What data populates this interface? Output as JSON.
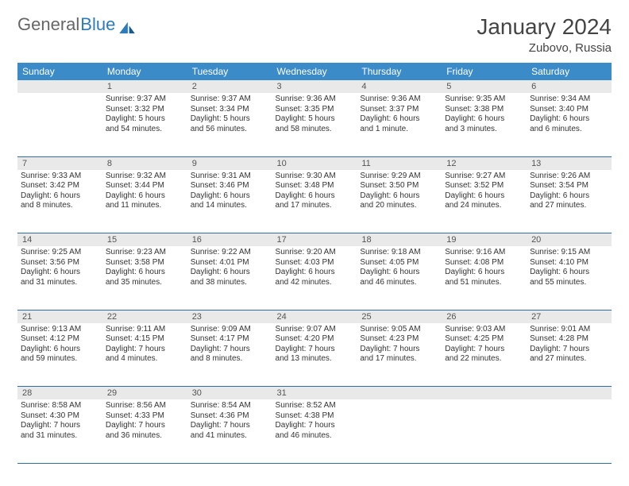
{
  "brand": {
    "general": "General",
    "blue": "Blue"
  },
  "title": "January 2024",
  "location": "Zubovo, Russia",
  "colors": {
    "header_bg": "#3b8bc9",
    "header_text": "#ffffff",
    "daynum_bg": "#e9e9e9",
    "daynum_text": "#555555",
    "row_border": "#2e6fa8",
    "body_text": "#333333",
    "title_text": "#444444",
    "logo_gray": "#666666",
    "logo_blue": "#2c7bbd"
  },
  "weekdays": [
    "Sunday",
    "Monday",
    "Tuesday",
    "Wednesday",
    "Thursday",
    "Friday",
    "Saturday"
  ],
  "weeks": [
    {
      "nums": [
        "",
        "1",
        "2",
        "3",
        "4",
        "5",
        "6"
      ],
      "cells": [
        {
          "lines": []
        },
        {
          "lines": [
            "Sunrise: 9:37 AM",
            "Sunset: 3:32 PM",
            "Daylight: 5 hours",
            "and 54 minutes."
          ]
        },
        {
          "lines": [
            "Sunrise: 9:37 AM",
            "Sunset: 3:34 PM",
            "Daylight: 5 hours",
            "and 56 minutes."
          ]
        },
        {
          "lines": [
            "Sunrise: 9:36 AM",
            "Sunset: 3:35 PM",
            "Daylight: 5 hours",
            "and 58 minutes."
          ]
        },
        {
          "lines": [
            "Sunrise: 9:36 AM",
            "Sunset: 3:37 PM",
            "Daylight: 6 hours",
            "and 1 minute."
          ]
        },
        {
          "lines": [
            "Sunrise: 9:35 AM",
            "Sunset: 3:38 PM",
            "Daylight: 6 hours",
            "and 3 minutes."
          ]
        },
        {
          "lines": [
            "Sunrise: 9:34 AM",
            "Sunset: 3:40 PM",
            "Daylight: 6 hours",
            "and 6 minutes."
          ]
        }
      ]
    },
    {
      "nums": [
        "7",
        "8",
        "9",
        "10",
        "11",
        "12",
        "13"
      ],
      "cells": [
        {
          "lines": [
            "Sunrise: 9:33 AM",
            "Sunset: 3:42 PM",
            "Daylight: 6 hours",
            "and 8 minutes."
          ]
        },
        {
          "lines": [
            "Sunrise: 9:32 AM",
            "Sunset: 3:44 PM",
            "Daylight: 6 hours",
            "and 11 minutes."
          ]
        },
        {
          "lines": [
            "Sunrise: 9:31 AM",
            "Sunset: 3:46 PM",
            "Daylight: 6 hours",
            "and 14 minutes."
          ]
        },
        {
          "lines": [
            "Sunrise: 9:30 AM",
            "Sunset: 3:48 PM",
            "Daylight: 6 hours",
            "and 17 minutes."
          ]
        },
        {
          "lines": [
            "Sunrise: 9:29 AM",
            "Sunset: 3:50 PM",
            "Daylight: 6 hours",
            "and 20 minutes."
          ]
        },
        {
          "lines": [
            "Sunrise: 9:27 AM",
            "Sunset: 3:52 PM",
            "Daylight: 6 hours",
            "and 24 minutes."
          ]
        },
        {
          "lines": [
            "Sunrise: 9:26 AM",
            "Sunset: 3:54 PM",
            "Daylight: 6 hours",
            "and 27 minutes."
          ]
        }
      ]
    },
    {
      "nums": [
        "14",
        "15",
        "16",
        "17",
        "18",
        "19",
        "20"
      ],
      "cells": [
        {
          "lines": [
            "Sunrise: 9:25 AM",
            "Sunset: 3:56 PM",
            "Daylight: 6 hours",
            "and 31 minutes."
          ]
        },
        {
          "lines": [
            "Sunrise: 9:23 AM",
            "Sunset: 3:58 PM",
            "Daylight: 6 hours",
            "and 35 minutes."
          ]
        },
        {
          "lines": [
            "Sunrise: 9:22 AM",
            "Sunset: 4:01 PM",
            "Daylight: 6 hours",
            "and 38 minutes."
          ]
        },
        {
          "lines": [
            "Sunrise: 9:20 AM",
            "Sunset: 4:03 PM",
            "Daylight: 6 hours",
            "and 42 minutes."
          ]
        },
        {
          "lines": [
            "Sunrise: 9:18 AM",
            "Sunset: 4:05 PM",
            "Daylight: 6 hours",
            "and 46 minutes."
          ]
        },
        {
          "lines": [
            "Sunrise: 9:16 AM",
            "Sunset: 4:08 PM",
            "Daylight: 6 hours",
            "and 51 minutes."
          ]
        },
        {
          "lines": [
            "Sunrise: 9:15 AM",
            "Sunset: 4:10 PM",
            "Daylight: 6 hours",
            "and 55 minutes."
          ]
        }
      ]
    },
    {
      "nums": [
        "21",
        "22",
        "23",
        "24",
        "25",
        "26",
        "27"
      ],
      "cells": [
        {
          "lines": [
            "Sunrise: 9:13 AM",
            "Sunset: 4:12 PM",
            "Daylight: 6 hours",
            "and 59 minutes."
          ]
        },
        {
          "lines": [
            "Sunrise: 9:11 AM",
            "Sunset: 4:15 PM",
            "Daylight: 7 hours",
            "and 4 minutes."
          ]
        },
        {
          "lines": [
            "Sunrise: 9:09 AM",
            "Sunset: 4:17 PM",
            "Daylight: 7 hours",
            "and 8 minutes."
          ]
        },
        {
          "lines": [
            "Sunrise: 9:07 AM",
            "Sunset: 4:20 PM",
            "Daylight: 7 hours",
            "and 13 minutes."
          ]
        },
        {
          "lines": [
            "Sunrise: 9:05 AM",
            "Sunset: 4:23 PM",
            "Daylight: 7 hours",
            "and 17 minutes."
          ]
        },
        {
          "lines": [
            "Sunrise: 9:03 AM",
            "Sunset: 4:25 PM",
            "Daylight: 7 hours",
            "and 22 minutes."
          ]
        },
        {
          "lines": [
            "Sunrise: 9:01 AM",
            "Sunset: 4:28 PM",
            "Daylight: 7 hours",
            "and 27 minutes."
          ]
        }
      ]
    },
    {
      "nums": [
        "28",
        "29",
        "30",
        "31",
        "",
        "",
        ""
      ],
      "cells": [
        {
          "lines": [
            "Sunrise: 8:58 AM",
            "Sunset: 4:30 PM",
            "Daylight: 7 hours",
            "and 31 minutes."
          ]
        },
        {
          "lines": [
            "Sunrise: 8:56 AM",
            "Sunset: 4:33 PM",
            "Daylight: 7 hours",
            "and 36 minutes."
          ]
        },
        {
          "lines": [
            "Sunrise: 8:54 AM",
            "Sunset: 4:36 PM",
            "Daylight: 7 hours",
            "and 41 minutes."
          ]
        },
        {
          "lines": [
            "Sunrise: 8:52 AM",
            "Sunset: 4:38 PM",
            "Daylight: 7 hours",
            "and 46 minutes."
          ]
        },
        {
          "lines": []
        },
        {
          "lines": []
        },
        {
          "lines": []
        }
      ]
    }
  ]
}
